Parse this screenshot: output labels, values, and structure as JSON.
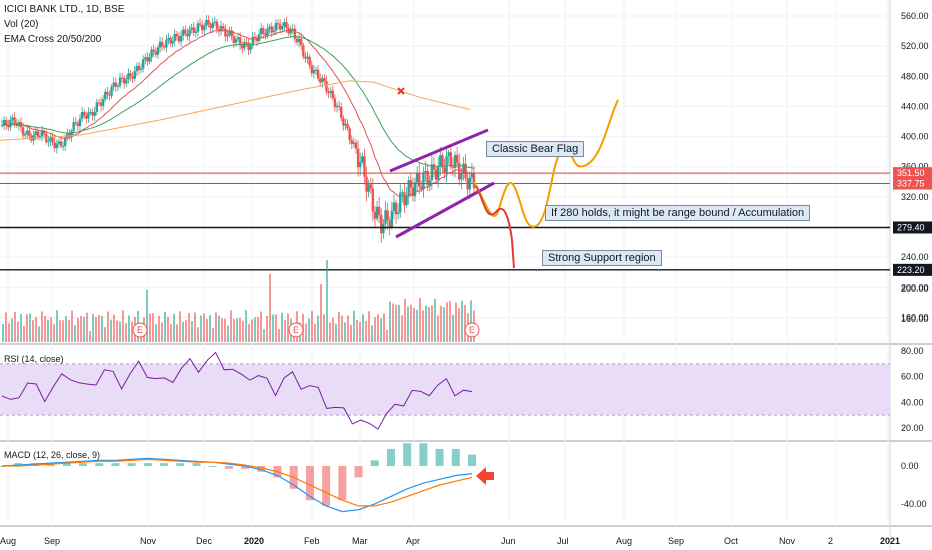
{
  "header": {
    "title": "ICICI BANK LTD., 1D, BSE",
    "volume_label": "Vol (20)",
    "ema_label": "EMA Cross 20/50/200"
  },
  "annotations": {
    "bear_flag": "Classic Bear Flag",
    "range_bound": "If 280 holds, it might be range bound / Accumulation",
    "support": "Strong Support region"
  },
  "panes": {
    "rsi_label": "RSI (14, close)",
    "macd_label": "MACD (12, 26, close, 9)"
  },
  "colors": {
    "candle_up": "#26a69a",
    "candle_down": "#ef5350",
    "ema20": "#e05252",
    "ema50": "#3aa35a",
    "ema200": "#f5a85a",
    "flag_lines": "#8e24aa",
    "projection_up": "#f0a000",
    "projection_down": "#e53935",
    "rsi_line": "#7b1fa2",
    "rsi_band": "#e9dcf7",
    "macd_line": "#2196f3",
    "signal_line": "#ff7a00",
    "arrow": "#f44336"
  },
  "chart_data": [
    {
      "type": "candlestick",
      "pane": "price",
      "price_ticks": [
        560,
        520,
        480,
        440,
        400,
        360,
        320,
        280,
        240,
        200,
        160
      ],
      "ylim": [
        140,
        570
      ],
      "x_ticks": [
        "Aug",
        "Sep",
        "Nov",
        "Dec",
        "2020",
        "Feb",
        "Mar",
        "Apr",
        "Jun",
        "Jul",
        "Aug",
        "Sep",
        "Oct",
        "Nov",
        "2",
        "2021"
      ],
      "close_series": [
        415,
        418,
        422,
        410,
        402,
        400,
        405,
        398,
        392,
        388,
        395,
        410,
        420,
        430,
        428,
        440,
        450,
        460,
        470,
        475,
        478,
        485,
        495,
        505,
        512,
        520,
        525,
        530,
        532,
        538,
        540,
        545,
        548,
        550,
        546,
        540,
        535,
        528,
        522,
        520,
        530,
        538,
        540,
        544,
        548,
        545,
        538,
        525,
        505,
        490,
        480,
        470,
        455,
        440,
        420,
        400,
        380,
        360,
        330,
        300,
        285,
        290,
        300,
        315,
        325,
        335,
        340,
        345,
        350,
        360,
        365,
        370,
        360,
        350,
        340
      ],
      "horizontal_levels": [
        {
          "value": 351.5,
          "label": "351.50",
          "color": "#e53935"
        },
        {
          "value": 337.75,
          "label": "337.75",
          "color": "#e53935"
        },
        {
          "value": 279.4,
          "label": "279.40",
          "color": "#131722"
        },
        {
          "value": 223.2,
          "label": "223.20",
          "color": "#131722"
        }
      ],
      "flag_upper": {
        "from": [
          "Mar 16",
          355
        ],
        "to": [
          "Apr 26",
          400
        ]
      },
      "flag_lower": {
        "from": [
          "Mar 16",
          276
        ],
        "to": [
          "Apr 26",
          320
        ]
      },
      "projection_bullish": [
        337,
        300,
        330,
        290,
        350,
        380,
        360,
        400,
        450
      ],
      "projection_bearish": [
        337,
        300,
        280,
        250,
        223
      ]
    },
    {
      "type": "bar",
      "pane": "volume",
      "title": "Vol (20)",
      "y_ticks": [
        200,
        160
      ],
      "spike_months": [
        "Nov",
        "Jan",
        "Feb"
      ]
    },
    {
      "type": "line",
      "pane": "rsi",
      "title": "RSI (14, close)",
      "y_ticks": [
        80,
        60,
        40,
        20
      ],
      "band": [
        30,
        70
      ],
      "values": [
        45,
        38,
        48,
        55,
        50,
        45,
        52,
        58,
        62,
        55,
        50,
        58,
        65,
        60,
        55,
        62,
        68,
        64,
        58,
        55,
        60,
        66,
        70,
        68,
        72,
        75,
        70,
        65,
        58,
        62,
        60,
        55,
        50,
        58,
        60,
        55,
        52,
        48,
        40,
        35,
        32,
        28,
        25,
        20,
        24,
        30,
        35,
        42,
        48,
        45,
        50,
        52,
        55,
        50,
        48,
        45
      ]
    },
    {
      "type": "line",
      "pane": "macd",
      "title": "MACD (12, 26, close, 9)",
      "y_ticks": [
        "0.00",
        "-40.00"
      ],
      "macd_values": [
        0,
        1,
        2,
        3,
        4,
        5,
        6,
        6,
        7,
        8,
        7,
        6,
        5,
        4,
        2,
        0,
        -4,
        -10,
        -20,
        -32,
        -42,
        -48,
        -46,
        -40,
        -32,
        -24,
        -18,
        -14,
        -10,
        -8
      ],
      "signal_values": [
        0,
        0,
        1,
        2,
        3,
        4,
        5,
        5,
        6,
        7,
        6,
        5,
        4,
        4,
        3,
        1,
        -2,
        -6,
        -12,
        -20,
        -28,
        -36,
        -42,
        -42,
        -38,
        -32,
        -26,
        -20,
        -16,
        -12
      ]
    }
  ]
}
